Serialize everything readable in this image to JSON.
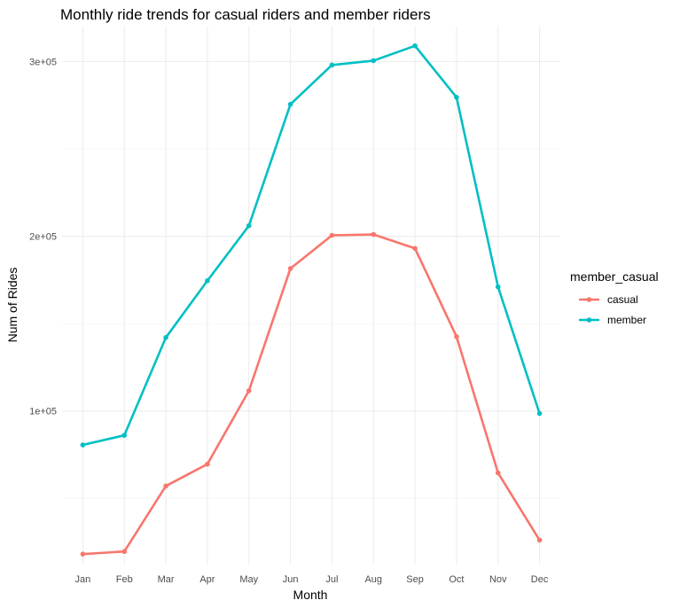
{
  "chart_data": {
    "type": "line",
    "title": "Monthly ride trends for casual riders and member riders",
    "xlabel": "Month",
    "ylabel": "Num of Rides",
    "categories": [
      "Jan",
      "Feb",
      "Mar",
      "Apr",
      "May",
      "Jun",
      "Jul",
      "Aug",
      "Sep",
      "Oct",
      "Nov",
      "Dec"
    ],
    "y_ticks": [
      100000,
      200000,
      300000
    ],
    "y_tick_labels": [
      "1e+05",
      "2e+05",
      "3e+05"
    ],
    "ylim": [
      12000,
      320000
    ],
    "grid": true,
    "legend": {
      "title": "member_casual",
      "position": "right"
    },
    "series": [
      {
        "name": "casual",
        "color": "#F8766D",
        "values": [
          18000,
          19500,
          57000,
          69500,
          111500,
          181500,
          200500,
          201000,
          193000,
          142500,
          64500,
          26000
        ]
      },
      {
        "name": "member",
        "color": "#00BFC4",
        "values": [
          80500,
          86000,
          142000,
          174500,
          206000,
          275500,
          298000,
          300500,
          309000,
          279500,
          171000,
          98500
        ]
      }
    ]
  }
}
